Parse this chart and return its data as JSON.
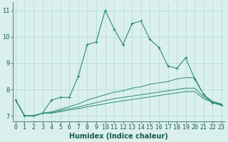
{
  "xlabel": "Humidex (Indice chaleur)",
  "x": [
    0,
    1,
    2,
    3,
    4,
    5,
    6,
    7,
    8,
    9,
    10,
    11,
    12,
    13,
    14,
    15,
    16,
    17,
    18,
    19,
    20,
    21,
    22,
    23
  ],
  "main_y": [
    7.6,
    7.0,
    7.0,
    7.1,
    7.6,
    7.7,
    7.7,
    8.5,
    9.7,
    9.8,
    11.0,
    10.3,
    9.7,
    10.5,
    10.6,
    9.9,
    9.6,
    8.9,
    8.8,
    9.2,
    8.4,
    7.8,
    7.5,
    7.4
  ],
  "line2_y": [
    7.6,
    7.0,
    7.0,
    7.1,
    7.15,
    7.25,
    7.35,
    7.45,
    7.6,
    7.7,
    7.8,
    7.9,
    7.95,
    8.05,
    8.1,
    8.2,
    8.25,
    8.3,
    8.4,
    8.45,
    8.45,
    7.8,
    7.55,
    7.45
  ],
  "line3_y": [
    7.6,
    7.0,
    7.0,
    7.1,
    7.12,
    7.2,
    7.27,
    7.33,
    7.42,
    7.5,
    7.58,
    7.65,
    7.7,
    7.75,
    7.8,
    7.85,
    7.9,
    7.95,
    8.0,
    8.05,
    8.05,
    7.72,
    7.52,
    7.43
  ],
  "line4_y": [
    7.6,
    7.0,
    7.0,
    7.1,
    7.1,
    7.16,
    7.22,
    7.27,
    7.34,
    7.4,
    7.46,
    7.52,
    7.57,
    7.62,
    7.67,
    7.72,
    7.77,
    7.82,
    7.87,
    7.92,
    7.92,
    7.65,
    7.5,
    7.42
  ],
  "line_color": "#2e8b6e",
  "bg_color": "#daf0ec",
  "grid_color": "#b8dcd8",
  "ylim": [
    6.8,
    11.3
  ],
  "yticks": [
    7,
    8,
    9,
    10,
    11
  ],
  "tick_fontsize": 6,
  "label_fontsize": 7
}
